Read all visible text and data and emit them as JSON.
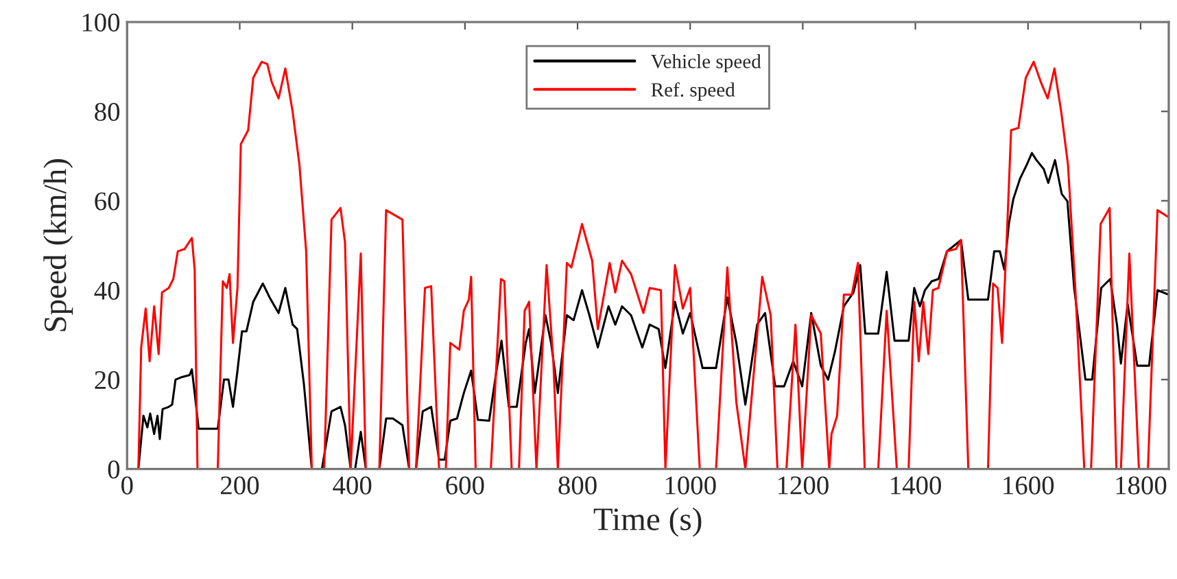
{
  "chart_data": {
    "type": "line",
    "xlabel": "Time (s)",
    "ylabel": "Speed (km/h)",
    "xlim": [
      0,
      1850
    ],
    "xticks": [
      0,
      200,
      400,
      600,
      800,
      1000,
      1200,
      1400,
      1600,
      1800
    ],
    "ylim": [
      0,
      100
    ],
    "yticks": [
      0,
      20,
      40,
      60,
      80,
      100
    ],
    "grid": false,
    "legend": "top",
    "marker": "none",
    "line_style": "solid",
    "series": [
      {
        "name": "Vehicle speed",
        "color": "#000000",
        "x": [
          20,
          29,
          36,
          41,
          48,
          54,
          58,
          63,
          74,
          80,
          86,
          98,
          111,
          115,
          120,
          127,
          161,
          172,
          180,
          188,
          196,
          204,
          212,
          224,
          241,
          253,
          269,
          281,
          294,
          302,
          314,
          328,
          346,
          363,
          379,
          387,
          397,
          405,
          415,
          424,
          448,
          460,
          472,
          489,
          501,
          513,
          525,
          540,
          554,
          564,
          574,
          586,
          598,
          611,
          623,
          643,
          656,
          665,
          678,
          692,
          708,
          714,
          724,
          743,
          753,
          765,
          781,
          793,
          808,
          821,
          836,
          855,
          867,
          879,
          895,
          915,
          928,
          944,
          956,
          973,
          987,
          1000,
          1022,
          1046,
          1066,
          1082,
          1098,
          1119,
          1133,
          1151,
          1167,
          1183,
          1199,
          1215,
          1232,
          1245,
          1257,
          1273,
          1290,
          1302,
          1311,
          1334,
          1349,
          1363,
          1388,
          1398,
          1408,
          1417,
          1429,
          1441,
          1456,
          1481,
          1494,
          1529,
          1540,
          1550,
          1558,
          1566,
          1574,
          1586,
          1598,
          1607,
          1615,
          1628,
          1636,
          1648,
          1660,
          1670,
          1682,
          1702,
          1714,
          1730,
          1746,
          1758,
          1765,
          1777,
          1794,
          1815,
          1830,
          1850
        ],
        "values": [
          0,
          11.9,
          9.3,
          12.4,
          7.8,
          11.9,
          6.7,
          13.4,
          13.9,
          14.4,
          20,
          20.6,
          21,
          22.3,
          17,
          9,
          9,
          20,
          20,
          13.9,
          22,
          30.8,
          30.8,
          37.4,
          41.5,
          38.4,
          34.9,
          40.5,
          32.3,
          31.3,
          19,
          0,
          0,
          12.9,
          13.9,
          9.8,
          0,
          0,
          8.3,
          0,
          0,
          11.3,
          11.3,
          9.8,
          0,
          0,
          12.9,
          13.9,
          2.1,
          2.1,
          10.8,
          11.3,
          17,
          22,
          11,
          10.8,
          22,
          28.7,
          13.9,
          13.9,
          28.2,
          31.3,
          17,
          34.4,
          28.2,
          17,
          34.4,
          33.3,
          40,
          34.4,
          27.2,
          36.4,
          32.3,
          36.4,
          34.4,
          27.2,
          32.3,
          31.3,
          22.6,
          37.4,
          30.3,
          34.9,
          22.6,
          22.6,
          38.4,
          28.2,
          14.4,
          32.3,
          34.9,
          18.5,
          18.5,
          24.1,
          18.5,
          34.9,
          23.1,
          20,
          26.2,
          36.4,
          39.5,
          45.6,
          30.3,
          30.3,
          44.1,
          28.7,
          28.7,
          40.5,
          36.4,
          40,
          42,
          42.5,
          48.7,
          51.2,
          37.9,
          37.9,
          48.7,
          48.7,
          44.6,
          54.8,
          60.4,
          65,
          68.1,
          70.7,
          69.1,
          67.1,
          64,
          69.1,
          61.5,
          59.9,
          40.5,
          20,
          20,
          40.5,
          42.5,
          32.3,
          23.6,
          36.9,
          23.1,
          23.1,
          40,
          39
        ]
      },
      {
        "name": "Ref. speed",
        "color": "#ff0000",
        "x": [
          20,
          25,
          33,
          40,
          48,
          56,
          62,
          74,
          82,
          90,
          102,
          115,
          120,
          125,
          161,
          170,
          177,
          182,
          188,
          196,
          202,
          215,
          224,
          239,
          249,
          257,
          269,
          281,
          294,
          306,
          318,
          328,
          350,
          363,
          379,
          387,
          397,
          415,
          424,
          448,
          460,
          489,
          501,
          513,
          529,
          540,
          554,
          566,
          574,
          590,
          598,
          607,
          611,
          619,
          630,
          646,
          664,
          670,
          683,
          696,
          706,
          714,
          727,
          745,
          757,
          765,
          781,
          789,
          808,
          826,
          836,
          857,
          867,
          879,
          895,
          917,
          928,
          948,
          956,
          973,
          987,
          1000,
          1017,
          1046,
          1066,
          1082,
          1098,
          1128,
          1143,
          1155,
          1171,
          1187,
          1199,
          1215,
          1232,
          1247,
          1251,
          1261,
          1273,
          1287,
          1298,
          1310,
          1334,
          1349,
          1367,
          1388,
          1398,
          1406,
          1414,
          1423,
          1431,
          1441,
          1456,
          1472,
          1481,
          1494,
          1529,
          1538,
          1546,
          1554,
          1562,
          1570,
          1583,
          1596,
          1610,
          1623,
          1635,
          1647,
          1659,
          1671,
          1684,
          1700,
          1712,
          1729,
          1745,
          1757,
          1765,
          1780,
          1797,
          1813,
          1830,
          1850
        ],
        "values": [
          0,
          27.2,
          35.9,
          24.1,
          36.4,
          25.7,
          39.5,
          40.5,
          42.5,
          48.7,
          49.2,
          51.7,
          44.6,
          0,
          0,
          42,
          40.5,
          43.6,
          28.2,
          40.5,
          72.7,
          75.8,
          87.5,
          91.1,
          90.6,
          86.5,
          82.9,
          89.6,
          79.9,
          68.1,
          48.7,
          0,
          0,
          55.8,
          58.4,
          50.7,
          0,
          48.2,
          0,
          0,
          57.9,
          55.8,
          0,
          0,
          40.5,
          40.9,
          0,
          0,
          28.2,
          26.7,
          35.4,
          37.9,
          43,
          0,
          0,
          0,
          42.5,
          42,
          0,
          0,
          35.4,
          37.4,
          0,
          45.6,
          24.1,
          0,
          46.1,
          45.1,
          54.8,
          46.6,
          31.3,
          46.1,
          39.5,
          46.6,
          43.6,
          34.9,
          40.5,
          40,
          0,
          45.6,
          35.9,
          40.5,
          0,
          0,
          45.1,
          14.9,
          0,
          43,
          34.4,
          0,
          0,
          32.3,
          0,
          34.4,
          30.3,
          0,
          7.8,
          11.9,
          39,
          39,
          46.1,
          0,
          0,
          35.4,
          0,
          0,
          37.4,
          24.1,
          37.4,
          25.7,
          40,
          40.5,
          48.7,
          49.2,
          51.2,
          0,
          0,
          41.5,
          40.5,
          28.2,
          50.7,
          75.8,
          76.3,
          87.5,
          91.1,
          86.5,
          82.9,
          89.6,
          79.9,
          68.1,
          40.5,
          0,
          0,
          54.8,
          58.4,
          0,
          0,
          48.2,
          0,
          0,
          57.9,
          56.3
        ]
      }
    ]
  }
}
